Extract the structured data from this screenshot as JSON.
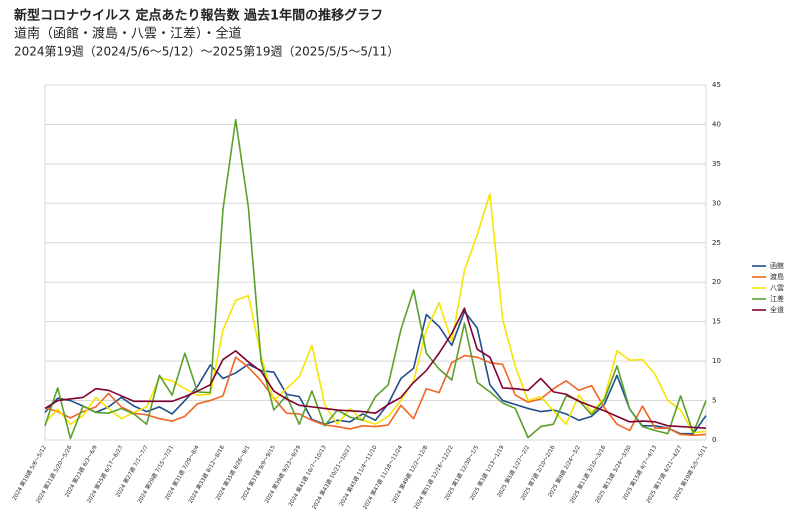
{
  "chart_data": {
    "type": "line",
    "title": "新型コロナウイルス 定点あたり報告数 過去1年間の推移グラフ",
    "subtitle": "道南（函館・渡島・八雲・江差）・全道",
    "period": "2024第19週（2024/5/6～5/12）～2025第19週（2025/5/5～5/11）",
    "categories": [
      "2024 第19週 5/6～5/12",
      null,
      "2024 第21週 5/20～5/26",
      null,
      "2024 第23週 6/3～6/9",
      null,
      "2024 第25週 6/17～6/23",
      null,
      "2024 第27週 7/1～7/7",
      null,
      "2024 第29週 7/15～7/21",
      null,
      "2024 第31週 7/29～8/4",
      null,
      "2024 第33週 8/12～8/18",
      null,
      "2024 第35週 8/26～9/1",
      null,
      "2024 第37週 9/9～9/15",
      null,
      "2024 第39週 9/23～9/29",
      null,
      "2024 第41週 10/7～10/13",
      null,
      "2024 第43週 10/21～10/27",
      null,
      "2024 第45週 11/4～11/10",
      null,
      "2024 第47週 11/18～11/24",
      null,
      "2024 第49週 12/2～12/8",
      null,
      "2024 第51週 12/16～12/22",
      null,
      "2025 第1週 12/30～1/5",
      null,
      "2025 第3週 1/13～1/19",
      null,
      "2025 第5週 1/27～2/2",
      null,
      "2025 第7週 2/10～2/16",
      null,
      "2025 第9週 2/24～3/2",
      null,
      "2025 第11週 3/10～3/16",
      null,
      "2025 第13週 3/24～3/30",
      null,
      "2025 第15週 4/7～4/13",
      null,
      "2025 第17週 4/21～4/27",
      null,
      "2025 第19週 5/5～5/11"
    ],
    "series": [
      {
        "name": "函館",
        "color": "#1f4e8c",
        "values": [
          3.5,
          5.3,
          5.0,
          4.3,
          3.5,
          4.2,
          5.4,
          4.3,
          3.6,
          4.2,
          3.3,
          5.0,
          6.8,
          9.5,
          7.8,
          8.5,
          9.6,
          8.8,
          8.6,
          5.8,
          5.5,
          2.6,
          2.0,
          2.5,
          2.3,
          3.3,
          2.5,
          4.6,
          7.8,
          9.1,
          15.9,
          14.4,
          12.0,
          16.3,
          14.2,
          7.0,
          5.0,
          4.5,
          4.0,
          3.6,
          3.8,
          3.3,
          2.5,
          3.0,
          4.5,
          8.2,
          3.9,
          1.8,
          1.8,
          1.5,
          0.8,
          0.8,
          3.1
        ]
      },
      {
        "name": "渡島",
        "color": "#f26522",
        "values": [
          4.1,
          3.6,
          2.8,
          3.6,
          4.2,
          5.9,
          4.2,
          3.4,
          3.2,
          2.7,
          2.4,
          3.0,
          4.6,
          5.0,
          5.6,
          10.5,
          9.2,
          7.5,
          5.3,
          3.4,
          3.3,
          2.5,
          1.9,
          1.7,
          1.4,
          1.8,
          1.7,
          1.9,
          4.4,
          2.7,
          6.5,
          6.0,
          9.8,
          10.7,
          10.5,
          9.8,
          9.6,
          5.7,
          4.8,
          5.2,
          6.5,
          7.5,
          6.3,
          6.9,
          4.1,
          2.0,
          1.2,
          4.3,
          1.5,
          1.5,
          0.7,
          0.6,
          0.7
        ]
      },
      {
        "name": "八雲",
        "color": "#f7e400",
        "values": [
          2.2,
          3.9,
          2.0,
          3.1,
          5.4,
          4.0,
          2.7,
          3.5,
          4.2,
          7.9,
          7.5,
          6.5,
          5.7,
          5.8,
          13.9,
          17.7,
          18.3,
          10.6,
          5.0,
          6.5,
          8.0,
          12.0,
          4.5,
          2.0,
          4.0,
          2.5,
          2.0,
          3.0,
          5.0,
          7.5,
          13.9,
          17.4,
          12.5,
          21.5,
          26.0,
          31.2,
          15.3,
          9.3,
          5.0,
          5.5,
          3.7,
          2.0,
          5.7,
          3.5,
          5.3,
          11.3,
          10.1,
          10.2,
          8.3,
          5.0,
          3.8,
          0.9,
          1.1
        ]
      },
      {
        "name": "江差",
        "color": "#5aa02c",
        "values": [
          1.8,
          6.6,
          0.2,
          4.3,
          3.5,
          3.4,
          4.0,
          3.3,
          2.0,
          8.2,
          5.7,
          11.0,
          6.1,
          6.0,
          29.2,
          40.6,
          29.5,
          10.0,
          3.8,
          5.6,
          2.0,
          6.2,
          1.8,
          3.8,
          2.9,
          2.5,
          5.5,
          7.0,
          14.0,
          19.0,
          11.0,
          9.0,
          7.6,
          14.8,
          7.3,
          6.1,
          4.7,
          4.0,
          0.3,
          1.7,
          2.0,
          5.6,
          5.0,
          3.2,
          5.1,
          9.4,
          3.9,
          1.7,
          1.2,
          0.8,
          5.6,
          0.9,
          5.0
        ]
      },
      {
        "name": "全道",
        "color": "#800033",
        "values": [
          4.0,
          5.0,
          5.2,
          5.4,
          6.5,
          6.3,
          5.6,
          4.9,
          4.9,
          4.9,
          4.9,
          5.5,
          6.2,
          7.0,
          10.2,
          11.3,
          9.9,
          8.7,
          6.2,
          5.2,
          4.4,
          4.2,
          4.0,
          3.8,
          3.7,
          3.6,
          3.4,
          4.5,
          5.4,
          7.3,
          8.8,
          11.0,
          13.5,
          16.7,
          11.5,
          10.5,
          6.6,
          6.5,
          6.3,
          7.8,
          6.1,
          5.8,
          4.9,
          4.3,
          3.7,
          3.0,
          2.3,
          2.4,
          2.3,
          1.8,
          1.7,
          1.6,
          1.5
        ]
      }
    ],
    "ylim": [
      0,
      45
    ],
    "yticks": [
      0,
      5,
      10,
      15,
      20,
      25,
      30,
      35,
      40,
      45
    ],
    "grid": true
  }
}
